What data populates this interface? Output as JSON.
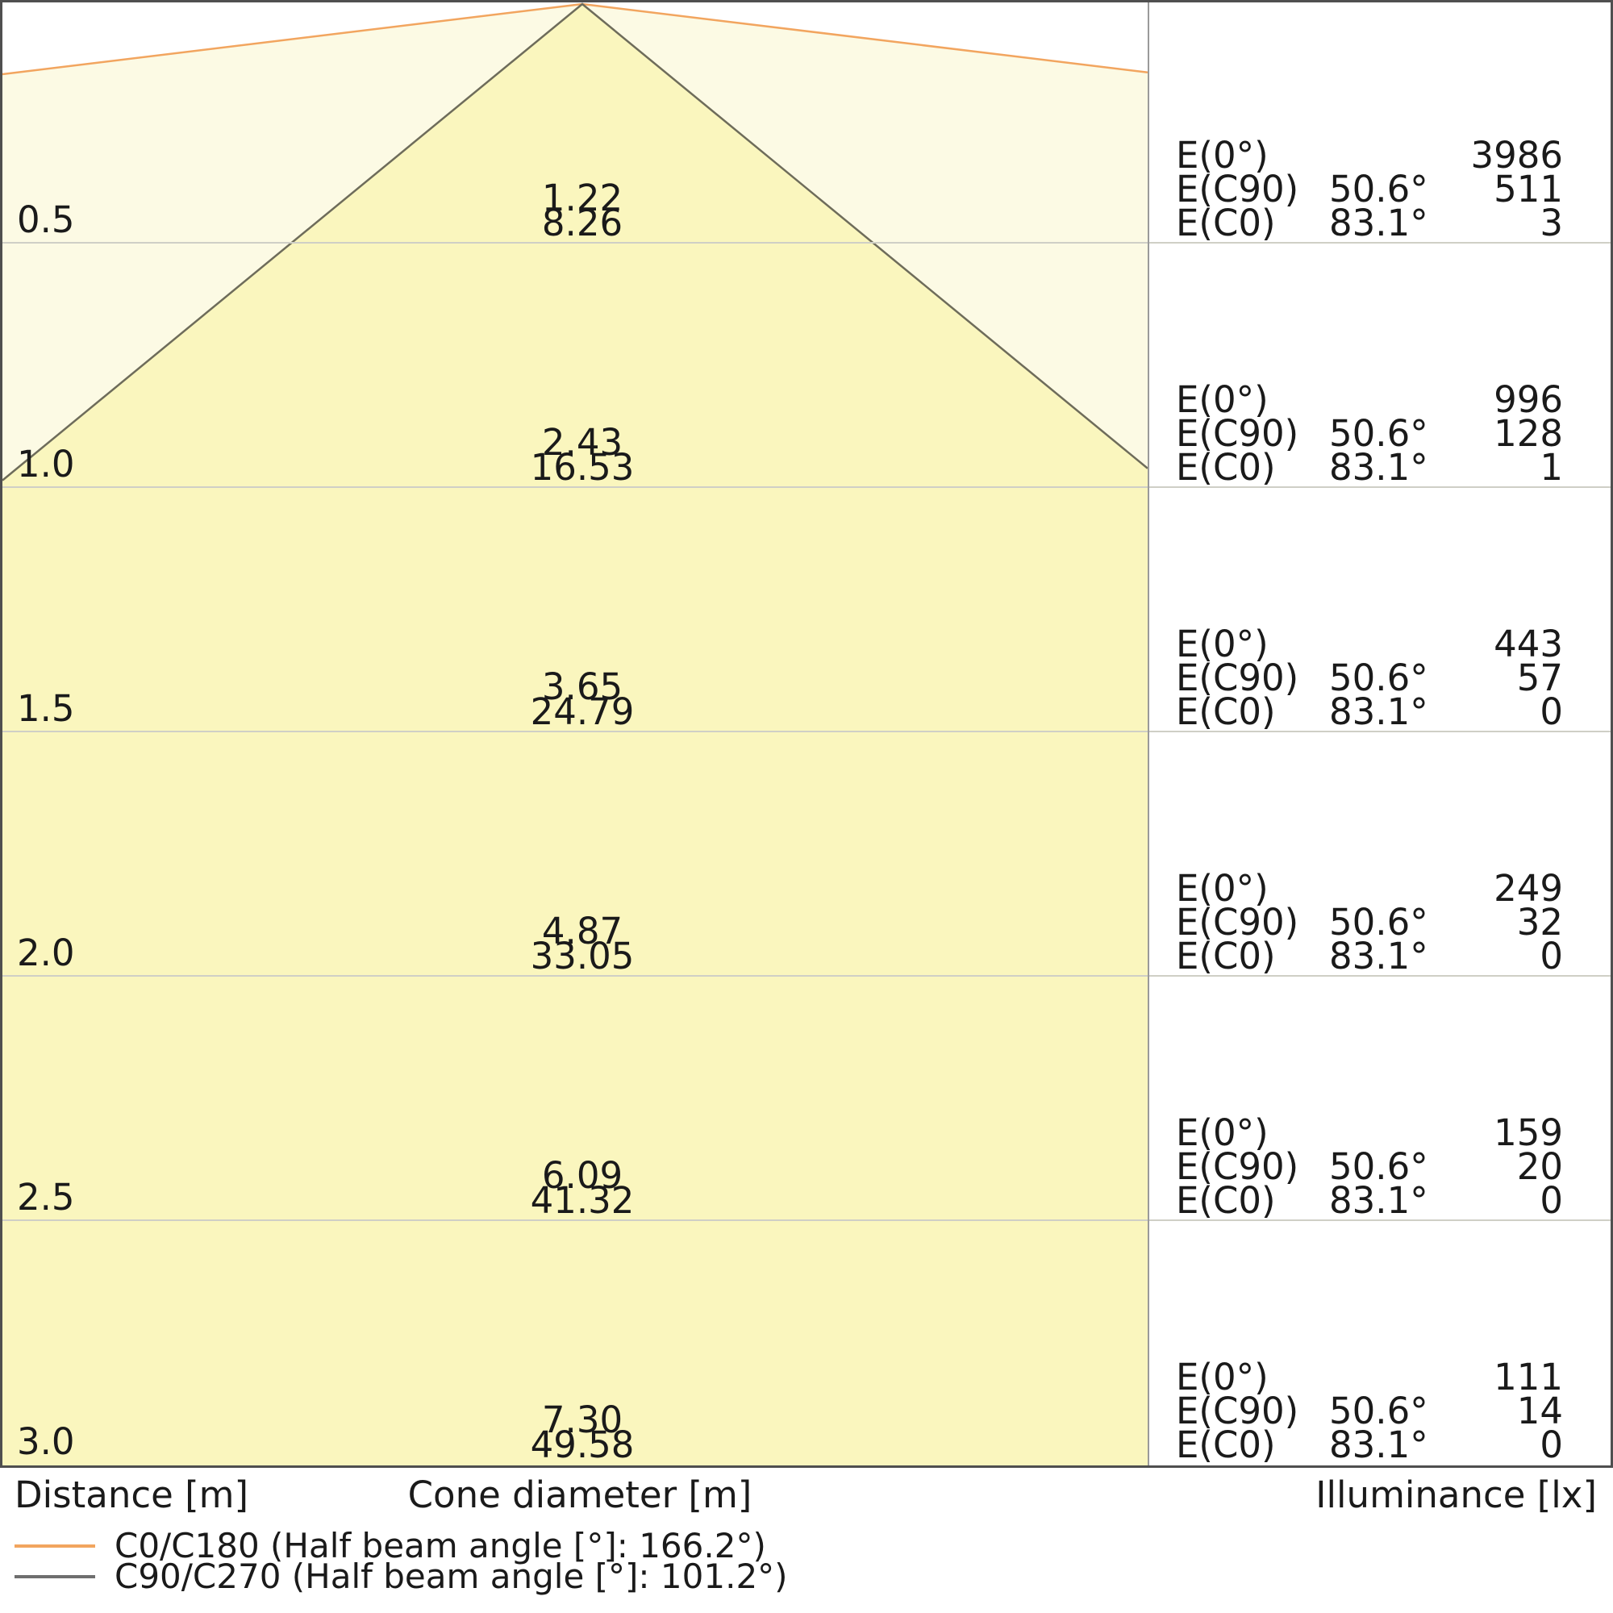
{
  "chart_data": {
    "type": "area",
    "subtype": "light-cone-diagram",
    "distance_axis_label": "Distance [m]",
    "cone_diameter_axis_label": "Cone diameter [m]",
    "illuminance_axis_label": "Illuminance [lx]",
    "legend_position": "bottom-left",
    "distances_m": [
      0.5,
      1.0,
      1.5,
      2.0,
      2.5,
      3.0
    ],
    "series": [
      {
        "name": "C0/C180",
        "legend": "C0/C180 (Half beam angle [°]: 166.2°)",
        "half_beam_angle_deg": 166.2,
        "line_color": "#F2A55F",
        "fill_color": "#FCFAE4",
        "cone_diameters_m": [
          8.26,
          16.53,
          24.79,
          33.05,
          41.32,
          49.58
        ]
      },
      {
        "name": "C90/C270",
        "legend": "C90/C270 (Half beam angle [°]: 101.2°)",
        "half_beam_angle_deg": 101.2,
        "line_color": "#6E6C5A",
        "fill_color": "#FAF6BE",
        "cone_diameters_m": [
          1.22,
          2.43,
          3.65,
          4.87,
          6.09,
          7.3
        ]
      }
    ],
    "colors": {
      "grid": "#CFCFC6",
      "divider": "#9A9A9A",
      "border": "#4F4F4F",
      "text": "#1A1A1A",
      "legend_c90_swatch": "#6F6F6F"
    },
    "rows": [
      {
        "distance": "0.5",
        "cone_c90": "1.22",
        "cone_c0": "8.26",
        "e0": {
          "label": "E(0°)",
          "angle": "",
          "value": "3986"
        },
        "ec90": {
          "label": "E(C90)",
          "angle": "50.6°",
          "value": "511"
        },
        "ec0": {
          "label": "E(C0)",
          "angle": "83.1°",
          "value": "3"
        }
      },
      {
        "distance": "1.0",
        "cone_c90": "2.43",
        "cone_c0": "16.53",
        "e0": {
          "label": "E(0°)",
          "angle": "",
          "value": "996"
        },
        "ec90": {
          "label": "E(C90)",
          "angle": "50.6°",
          "value": "128"
        },
        "ec0": {
          "label": "E(C0)",
          "angle": "83.1°",
          "value": "1"
        }
      },
      {
        "distance": "1.5",
        "cone_c90": "3.65",
        "cone_c0": "24.79",
        "e0": {
          "label": "E(0°)",
          "angle": "",
          "value": "443"
        },
        "ec90": {
          "label": "E(C90)",
          "angle": "50.6°",
          "value": "57"
        },
        "ec0": {
          "label": "E(C0)",
          "angle": "83.1°",
          "value": "0"
        }
      },
      {
        "distance": "2.0",
        "cone_c90": "4.87",
        "cone_c0": "33.05",
        "e0": {
          "label": "E(0°)",
          "angle": "",
          "value": "249"
        },
        "ec90": {
          "label": "E(C90)",
          "angle": "50.6°",
          "value": "32"
        },
        "ec0": {
          "label": "E(C0)",
          "angle": "83.1°",
          "value": "0"
        }
      },
      {
        "distance": "2.5",
        "cone_c90": "6.09",
        "cone_c0": "41.32",
        "e0": {
          "label": "E(0°)",
          "angle": "",
          "value": "159"
        },
        "ec90": {
          "label": "E(C90)",
          "angle": "50.6°",
          "value": "20"
        },
        "ec0": {
          "label": "E(C0)",
          "angle": "83.1°",
          "value": "0"
        }
      },
      {
        "distance": "3.0",
        "cone_c90": "7.30",
        "cone_c0": "49.58",
        "e0": {
          "label": "E(0°)",
          "angle": "",
          "value": "111"
        },
        "ec90": {
          "label": "E(C90)",
          "angle": "50.6°",
          "value": "14"
        },
        "ec0": {
          "label": "E(C0)",
          "angle": "83.1°",
          "value": "0"
        }
      }
    ]
  }
}
